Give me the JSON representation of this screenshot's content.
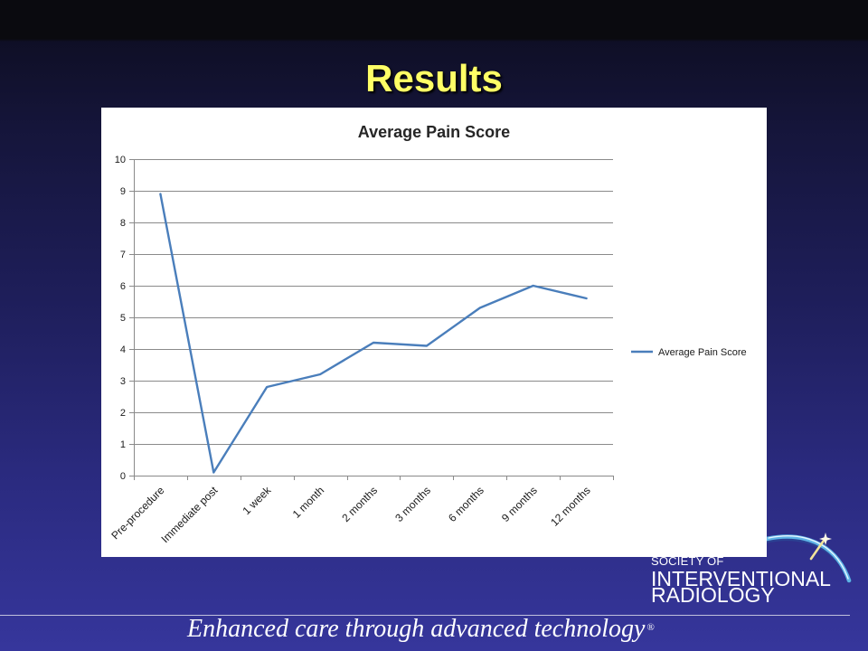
{
  "slide": {
    "title": "Results"
  },
  "colors": {
    "title_text": "#FFFF66",
    "series_line": "#4A7EBB",
    "gridline": "#8A8A8A",
    "chart_background": "#FFFFFF",
    "logo_arc": "#5FB4E6",
    "tagline_text": "#FFFFFF"
  },
  "chart_data": {
    "type": "line",
    "title": "Average Pain Score",
    "categories": [
      "Pre-procedure",
      "Immediate post",
      "1 week",
      "1 month",
      "2 months",
      "3 months",
      "6 months",
      "9 months",
      "12 months"
    ],
    "series": [
      {
        "name": "Average Pain Score",
        "values": [
          8.9,
          0.1,
          2.8,
          3.2,
          4.2,
          4.1,
          5.3,
          6.0,
          5.6
        ],
        "color": "#4A7EBB"
      }
    ],
    "ylim": [
      0,
      10
    ],
    "yticks": [
      0,
      1,
      2,
      3,
      4,
      5,
      6,
      7,
      8,
      9,
      10
    ],
    "grid": true,
    "legend": "right",
    "markers": false
  },
  "logo": {
    "line1": "SOCIETY OF",
    "line2": "INTERVENTIONAL",
    "line3": "RADIOLOGY"
  },
  "footer": {
    "tagline": "Enhanced care through advanced technology",
    "registered_mark": "®"
  }
}
